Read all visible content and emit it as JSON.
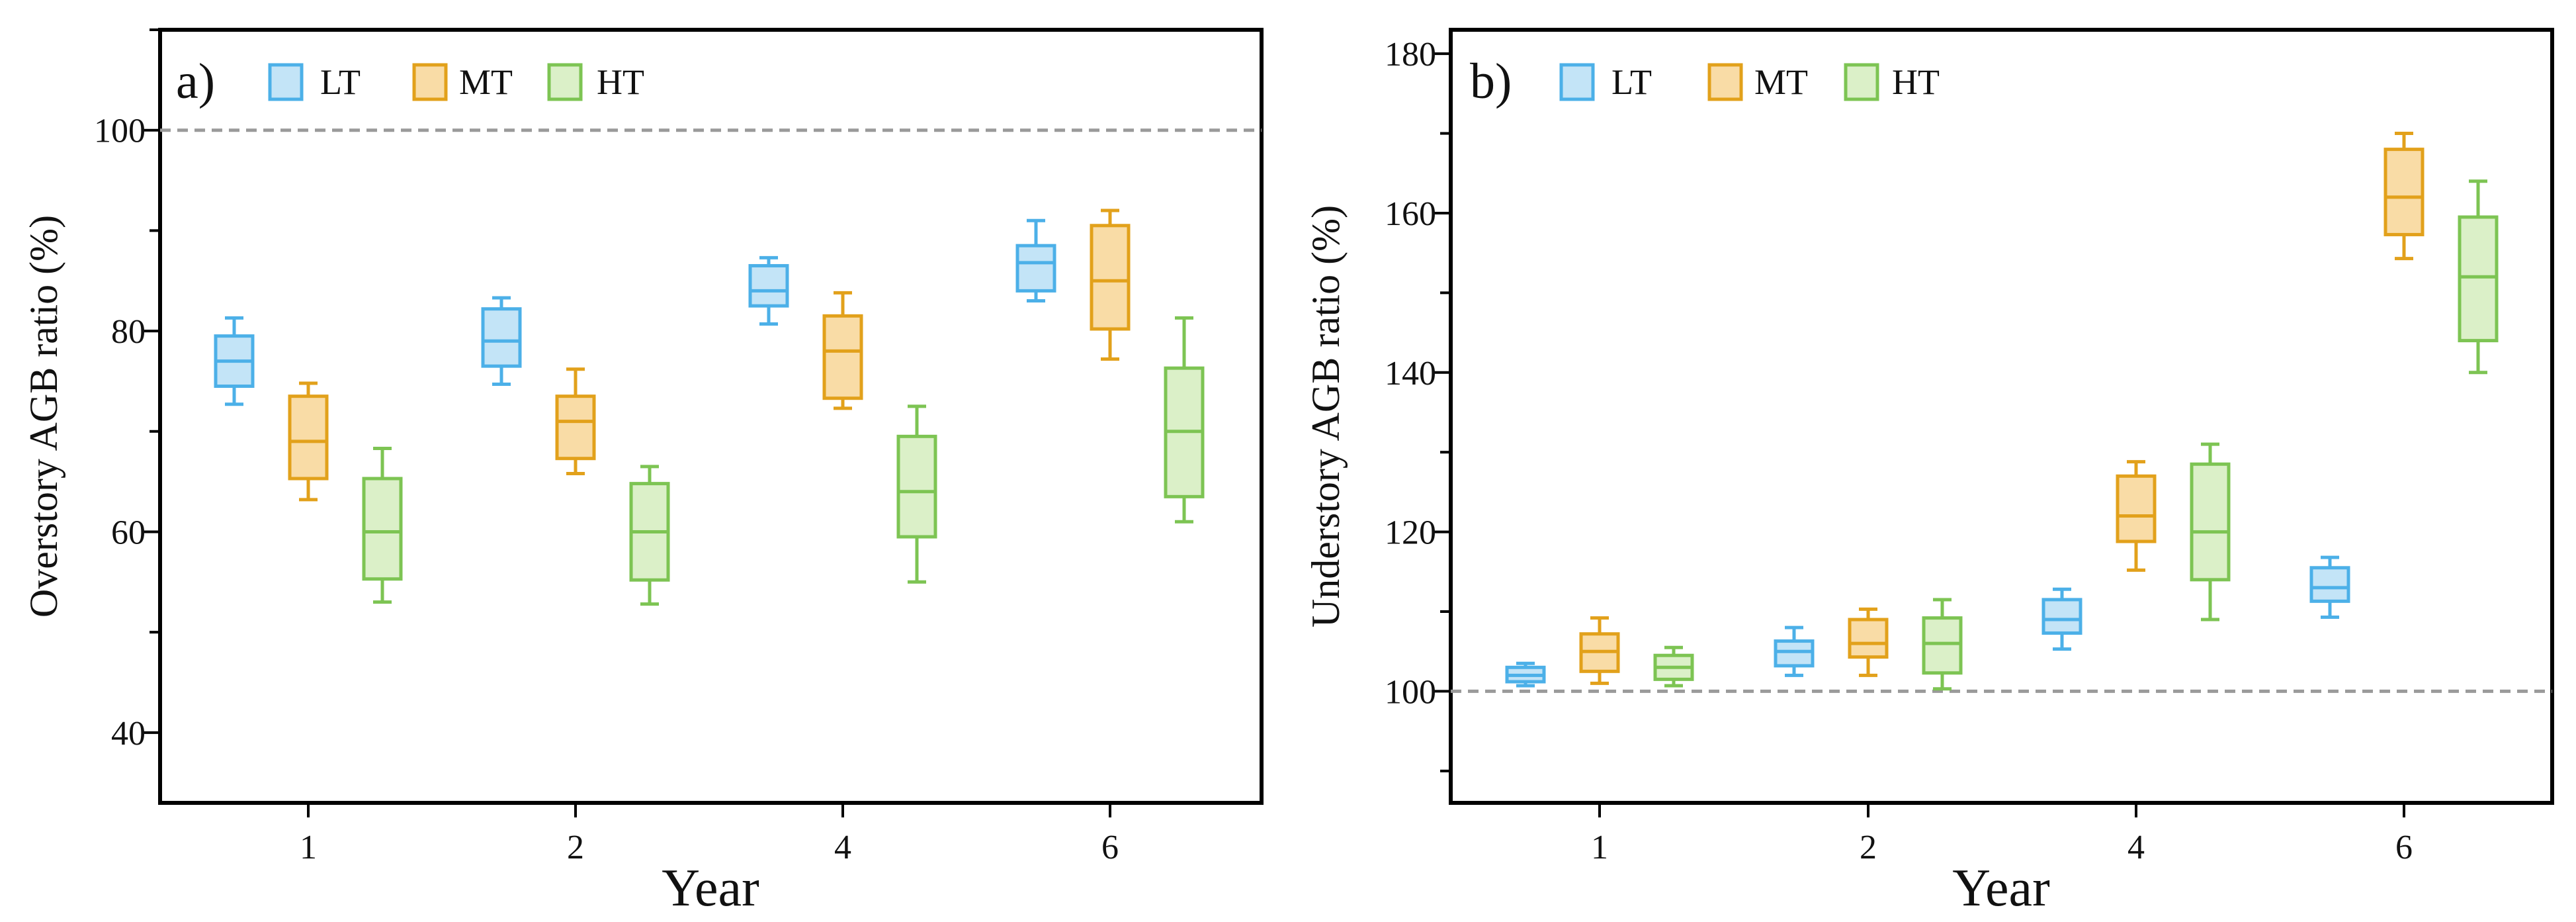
{
  "series_styles": [
    {
      "key": "LT",
      "name": "LT",
      "stroke": "#4CB0E8",
      "fill": "#C3E4F7"
    },
    {
      "key": "MT",
      "name": "MT",
      "stroke": "#E2A11B",
      "fill": "#F9DCA6"
    },
    {
      "key": "HT",
      "name": "HT",
      "stroke": "#7DC453",
      "fill": "#DBF0C8"
    }
  ],
  "chart_data": [
    {
      "type": "boxplot",
      "panel_label": "a)",
      "xlabel": "Year",
      "ylabel": "Overstory AGB ratio (%)",
      "categories": [
        "1",
        "2",
        "4",
        "6"
      ],
      "ylim": [
        33,
        110
      ],
      "yticks": [
        40,
        60,
        80,
        100
      ],
      "reference_line": 100,
      "legend": "top-left",
      "grid": false,
      "series": [
        {
          "name": "LT",
          "boxes": [
            {
              "min": 72.7,
              "q1": 74.5,
              "median": 77,
              "q3": 79.5,
              "max": 81.3
            },
            {
              "min": 74.7,
              "q1": 76.5,
              "median": 79,
              "q3": 82.2,
              "max": 83.3
            },
            {
              "min": 80.7,
              "q1": 82.5,
              "median": 84,
              "q3": 86.5,
              "max": 87.3
            },
            {
              "min": 83,
              "q1": 84,
              "median": 86.8,
              "q3": 88.5,
              "max": 91
            }
          ]
        },
        {
          "name": "MT",
          "boxes": [
            {
              "min": 63.2,
              "q1": 65.3,
              "median": 69,
              "q3": 73.5,
              "max": 74.8
            },
            {
              "min": 65.8,
              "q1": 67.3,
              "median": 71,
              "q3": 73.5,
              "max": 76.2
            },
            {
              "min": 72.3,
              "q1": 73.3,
              "median": 78,
              "q3": 81.5,
              "max": 83.8
            },
            {
              "min": 77.2,
              "q1": 80.2,
              "median": 85,
              "q3": 90.5,
              "max": 92
            }
          ]
        },
        {
          "name": "HT",
          "boxes": [
            {
              "min": 53,
              "q1": 55.3,
              "median": 60,
              "q3": 65.3,
              "max": 68.3
            },
            {
              "min": 52.8,
              "q1": 55.2,
              "median": 60,
              "q3": 64.8,
              "max": 66.5
            },
            {
              "min": 55,
              "q1": 59.5,
              "median": 64,
              "q3": 69.5,
              "max": 72.5
            },
            {
              "min": 61,
              "q1": 63.5,
              "median": 70,
              "q3": 76.3,
              "max": 81.3
            }
          ]
        }
      ]
    },
    {
      "type": "boxplot",
      "panel_label": "b)",
      "xlabel": "Year",
      "ylabel": "Understory AGB ratio (%)",
      "categories": [
        "1",
        "2",
        "4",
        "6"
      ],
      "ylim": [
        86,
        183
      ],
      "yticks": [
        100,
        120,
        140,
        160,
        180
      ],
      "reference_line": 100,
      "legend": "top-left",
      "grid": false,
      "series": [
        {
          "name": "LT",
          "boxes": [
            {
              "min": 100.7,
              "q1": 101.2,
              "median": 102,
              "q3": 103,
              "max": 103.5
            },
            {
              "min": 102,
              "q1": 103.2,
              "median": 105,
              "q3": 106.3,
              "max": 108
            },
            {
              "min": 105.3,
              "q1": 107.3,
              "median": 109,
              "q3": 111.5,
              "max": 112.8
            },
            {
              "min": 109.3,
              "q1": 111.3,
              "median": 113,
              "q3": 115.5,
              "max": 116.8
            }
          ]
        },
        {
          "name": "MT",
          "boxes": [
            {
              "min": 101,
              "q1": 102.5,
              "median": 105,
              "q3": 107.2,
              "max": 109.2
            },
            {
              "min": 102,
              "q1": 104.3,
              "median": 106,
              "q3": 109,
              "max": 110.3
            },
            {
              "min": 115.2,
              "q1": 118.8,
              "median": 122,
              "q3": 127,
              "max": 128.8
            },
            {
              "min": 154.3,
              "q1": 157.3,
              "median": 162,
              "q3": 168,
              "max": 170
            }
          ]
        },
        {
          "name": "HT",
          "boxes": [
            {
              "min": 100.7,
              "q1": 101.5,
              "median": 103,
              "q3": 104.5,
              "max": 105.5
            },
            {
              "min": 100.3,
              "q1": 102.3,
              "median": 106,
              "q3": 109.2,
              "max": 111.5
            },
            {
              "min": 109,
              "q1": 114,
              "median": 120,
              "q3": 128.5,
              "max": 131
            },
            {
              "min": 140,
              "q1": 144,
              "median": 152,
              "q3": 159.5,
              "max": 164
            }
          ]
        }
      ]
    }
  ]
}
